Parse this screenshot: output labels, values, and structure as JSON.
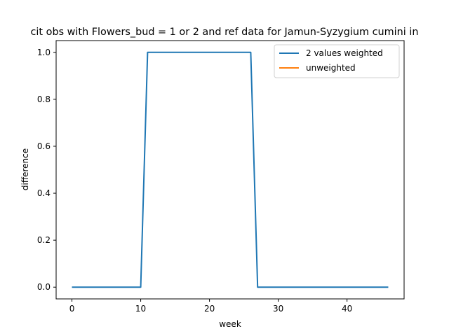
{
  "chart_data": {
    "type": "line",
    "title": "cit obs with Flowers_bud = 1 or 2 and ref data for Jamun-Syzygium cumini in",
    "xlabel": "week",
    "ylabel": "difference",
    "xlim": [
      -2.3,
      48.3
    ],
    "ylim": [
      -0.05,
      1.05
    ],
    "xticks": [
      0,
      10,
      20,
      30,
      40
    ],
    "xtick_labels": [
      "0",
      "10",
      "20",
      "30",
      "40"
    ],
    "yticks": [
      0.0,
      0.2,
      0.4,
      0.6,
      0.8,
      1.0
    ],
    "ytick_labels": [
      "0.0",
      "0.2",
      "0.4",
      "0.6",
      "0.8",
      "1.0"
    ],
    "grid": false,
    "legend_position": "top-right",
    "series": [
      {
        "name": "2 values weighted",
        "color": "#1f77b4",
        "x": [
          0,
          1,
          2,
          3,
          4,
          5,
          6,
          7,
          8,
          9,
          10,
          11,
          12,
          13,
          14,
          15,
          16,
          17,
          18,
          19,
          20,
          21,
          22,
          23,
          24,
          25,
          26,
          27,
          28,
          29,
          30,
          31,
          32,
          33,
          34,
          35,
          36,
          37,
          38,
          39,
          40,
          41,
          42,
          43,
          44,
          45,
          46
        ],
        "y": [
          0,
          0,
          0,
          0,
          0,
          0,
          0,
          0,
          0,
          0,
          0,
          1,
          1,
          1,
          1,
          1,
          1,
          1,
          1,
          1,
          1,
          1,
          1,
          1,
          1,
          1,
          1,
          0,
          0,
          0,
          0,
          0,
          0,
          0,
          0,
          0,
          0,
          0,
          0,
          0,
          0,
          0,
          0,
          0,
          0,
          0,
          0
        ]
      },
      {
        "name": "unweighted",
        "color": "#ff7f0e",
        "x": [],
        "y": []
      }
    ]
  }
}
